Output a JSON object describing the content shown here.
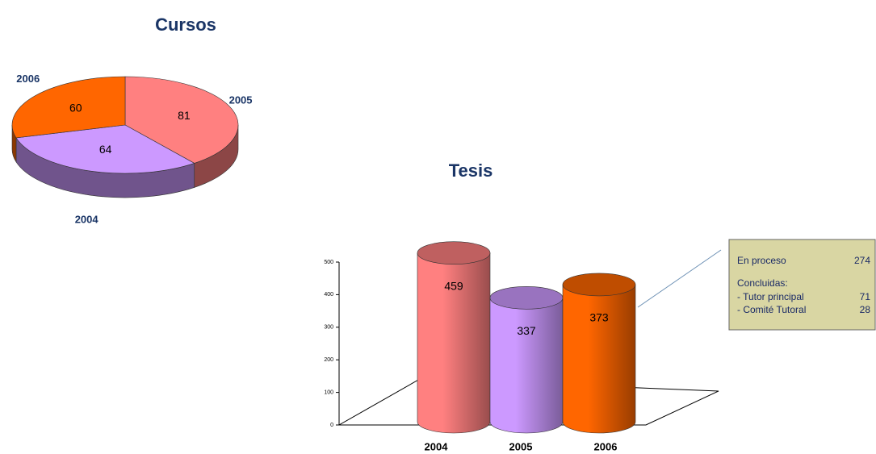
{
  "chart_data": [
    {
      "type": "pie",
      "title": "Cursos",
      "categories": [
        "2005",
        "2004",
        "2006"
      ],
      "values": [
        81,
        64,
        60
      ],
      "colors": [
        "#ff8080",
        "#cc99ff",
        "#ff6600"
      ]
    },
    {
      "type": "bar",
      "title": "Tesis",
      "categories": [
        "2004",
        "2005",
        "2006"
      ],
      "values": [
        459,
        337,
        373
      ],
      "colors": [
        "#ff8080",
        "#cc99ff",
        "#ff6600"
      ],
      "ylim": [
        0,
        500
      ],
      "yticks": [
        0,
        100,
        200,
        300,
        400,
        500
      ],
      "annotation": {
        "lines": [
          {
            "label": "En proceso",
            "value": 274
          },
          {
            "label": "Concluidas:"
          },
          {
            "label": "- Tutor principal",
            "value": 71
          },
          {
            "label": "- Comité Tutoral",
            "value": 28
          }
        ]
      }
    }
  ]
}
